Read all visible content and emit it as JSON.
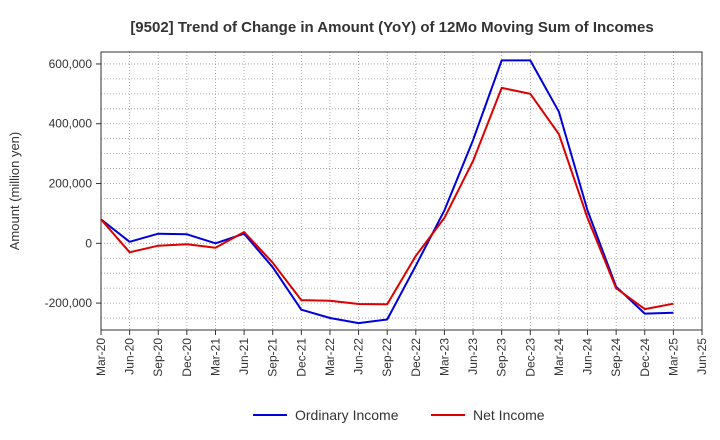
{
  "chart_data": {
    "type": "line",
    "title": "[9502]  Trend of Change in Amount (YoY) of 12Mo Moving Sum of Incomes",
    "ylabel": "Amount (million yen)",
    "xlabel": "",
    "x": [
      "Mar-20",
      "Jun-20",
      "Sep-20",
      "Dec-20",
      "Mar-21",
      "Jun-21",
      "Sep-21",
      "Dec-21",
      "Mar-22",
      "Jun-22",
      "Sep-22",
      "Dec-22",
      "Mar-23",
      "Jun-23",
      "Sep-23",
      "Dec-23",
      "Mar-24",
      "Jun-24",
      "Sep-24",
      "Dec-24",
      "Mar-25",
      "Jun-25"
    ],
    "ylim": [
      -290000,
      640000
    ],
    "yticks": [
      600000,
      400000,
      200000,
      0,
      -200000
    ],
    "ytick_labels": [
      "600,000",
      "400,000",
      "200,000",
      "0",
      "-200,000"
    ],
    "grid": true,
    "legend_position": "bottom",
    "series": [
      {
        "name": "Ordinary Income",
        "color": "#0000dd",
        "values": [
          80000,
          5000,
          32000,
          30000,
          0,
          32000,
          -80000,
          -222000,
          -250000,
          -267000,
          -255000,
          -75000,
          110000,
          345000,
          612000,
          612000,
          440000,
          110000,
          -145000,
          -235000,
          -232000,
          null
        ]
      },
      {
        "name": "Net Income",
        "color": "#dd0000",
        "values": [
          80000,
          -30000,
          -8000,
          -3000,
          -15000,
          38000,
          -65000,
          -190000,
          -192000,
          -203000,
          -204000,
          -42000,
          85000,
          275000,
          520000,
          500000,
          365000,
          85000,
          -150000,
          -220000,
          -202000,
          null
        ]
      }
    ]
  }
}
